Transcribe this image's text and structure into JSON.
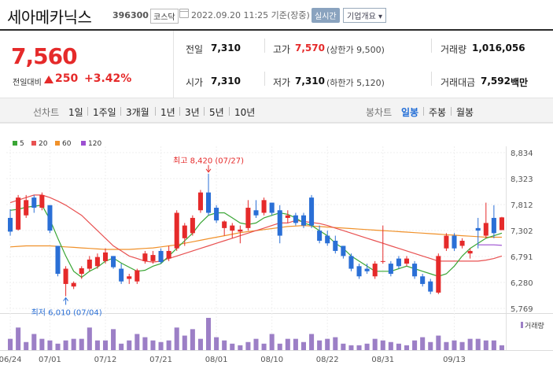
{
  "header": {
    "stock_name": "세아메카닉스",
    "stock_code": "396300",
    "market": "코스닥",
    "datetime": "2022.09.20 11:25 기준(장중)",
    "realtime_label": "실시간",
    "company_label": "기업개요 ▾"
  },
  "quote": {
    "price": "7,560",
    "change_label": "전일대비",
    "change": "250",
    "change_pct": "+3.42%",
    "prev_close_label": "전일",
    "prev_close": "7,310",
    "open_label": "시가",
    "open": "7,310",
    "high_label": "고가",
    "high": "7,570",
    "upper_limit": "(상한가 9,500)",
    "low_label": "저가",
    "low": "7,310",
    "lower_limit": "(하한가 5,120)",
    "volume_label": "거래량",
    "volume": "1,016,056",
    "amount_label": "거래대금",
    "amount": "7,592",
    "amount_unit": "백만"
  },
  "period_bar": {
    "line_chart_label": "선차트",
    "line_periods": [
      "1일",
      "1주일",
      "3개월",
      "1년",
      "3년",
      "5년",
      "10년"
    ],
    "candle_chart_label": "봉차트",
    "candle_periods": [
      "일봉",
      "주봉",
      "월봉"
    ],
    "active_candle_period": "일봉"
  },
  "colors": {
    "up": "#e52a2a",
    "down": "#2a6fd6",
    "ma5": "#3aa635",
    "ma20": "#e85151",
    "ma60": "#f0912a",
    "ma120": "#9c4fd1",
    "volume": "#9c7fc6"
  },
  "chart_data": {
    "type": "candlestick",
    "legend": [
      "5",
      "20",
      "60",
      "120"
    ],
    "y_ticks": [
      "8,834",
      "8,323",
      "7,812",
      "7,302",
      "6,791",
      "6,280",
      "5,769"
    ],
    "ylim": [
      5769,
      8834
    ],
    "x_tick_labels": [
      "06/24",
      "07/01",
      "07/12",
      "07/21",
      "08/01",
      "08/10",
      "08/22",
      "08/31",
      "09/13"
    ],
    "x_tick_index": [
      0,
      5,
      12,
      19,
      26,
      33,
      40,
      47,
      56
    ],
    "annotations": {
      "high": "최고 8,420 (07/27)",
      "low": "최저 6,010 (07/04)"
    },
    "volume_label": "거래량",
    "candles": [
      {
        "o": 7550,
        "h": 7720,
        "l": 7200,
        "c": 7280
      },
      {
        "o": 7320,
        "h": 8000,
        "l": 7300,
        "c": 7950
      },
      {
        "o": 7600,
        "h": 8000,
        "l": 7550,
        "c": 7900
      },
      {
        "o": 7950,
        "h": 8000,
        "l": 7650,
        "c": 7750
      },
      {
        "o": 7750,
        "h": 8050,
        "l": 7700,
        "c": 8000
      },
      {
        "o": 7800,
        "h": 7800,
        "l": 7250,
        "c": 7300
      },
      {
        "o": 7000,
        "h": 7000,
        "l": 6400,
        "c": 6450
      },
      {
        "o": 6250,
        "h": 6600,
        "l": 6010,
        "c": 6550
      },
      {
        "o": 6200,
        "h": 6300,
        "l": 6150,
        "c": 6270
      },
      {
        "o": 6450,
        "h": 6600,
        "l": 6350,
        "c": 6560
      },
      {
        "o": 6550,
        "h": 6800,
        "l": 6500,
        "c": 6730
      },
      {
        "o": 6600,
        "h": 6850,
        "l": 6550,
        "c": 6780
      },
      {
        "o": 6700,
        "h": 6950,
        "l": 6650,
        "c": 6870
      },
      {
        "o": 6800,
        "h": 6800,
        "l": 6550,
        "c": 6580
      },
      {
        "o": 6550,
        "h": 6650,
        "l": 6250,
        "c": 6300
      },
      {
        "o": 6350,
        "h": 6450,
        "l": 6250,
        "c": 6400
      },
      {
        "o": 6300,
        "h": 6550,
        "l": 6250,
        "c": 6520
      },
      {
        "o": 6700,
        "h": 6900,
        "l": 6650,
        "c": 6850
      },
      {
        "o": 6700,
        "h": 6900,
        "l": 6650,
        "c": 6820
      },
      {
        "o": 6900,
        "h": 6950,
        "l": 6650,
        "c": 6680
      },
      {
        "o": 6750,
        "h": 7000,
        "l": 6700,
        "c": 6900
      },
      {
        "o": 6950,
        "h": 7700,
        "l": 6900,
        "c": 7650
      },
      {
        "o": 7150,
        "h": 7450,
        "l": 7000,
        "c": 7400
      },
      {
        "o": 7250,
        "h": 7600,
        "l": 7200,
        "c": 7550
      },
      {
        "o": 7700,
        "h": 8100,
        "l": 7650,
        "c": 8050
      },
      {
        "o": 8050,
        "h": 8420,
        "l": 7600,
        "c": 7650
      },
      {
        "o": 7750,
        "h": 7800,
        "l": 7450,
        "c": 7500
      },
      {
        "o": 7350,
        "h": 7500,
        "l": 7200,
        "c": 7480
      },
      {
        "o": 7300,
        "h": 7450,
        "l": 7150,
        "c": 7400
      },
      {
        "o": 7280,
        "h": 7400,
        "l": 7050,
        "c": 7320
      },
      {
        "o": 7350,
        "h": 7900,
        "l": 7300,
        "c": 7750
      },
      {
        "o": 7700,
        "h": 7900,
        "l": 7550,
        "c": 7600
      },
      {
        "o": 7650,
        "h": 7950,
        "l": 7600,
        "c": 7900
      },
      {
        "o": 7850,
        "h": 7850,
        "l": 7600,
        "c": 7650
      },
      {
        "o": 7700,
        "h": 7800,
        "l": 7050,
        "c": 7200
      },
      {
        "o": 7550,
        "h": 7700,
        "l": 7450,
        "c": 7600
      },
      {
        "o": 7600,
        "h": 7650,
        "l": 7400,
        "c": 7450
      },
      {
        "o": 7600,
        "h": 7650,
        "l": 7350,
        "c": 7400
      },
      {
        "o": 7950,
        "h": 8000,
        "l": 7350,
        "c": 7400
      },
      {
        "o": 7300,
        "h": 7400,
        "l": 7050,
        "c": 7100
      },
      {
        "o": 7200,
        "h": 7300,
        "l": 7000,
        "c": 7050
      },
      {
        "o": 7100,
        "h": 7200,
        "l": 6850,
        "c": 6900
      },
      {
        "o": 7000,
        "h": 7000,
        "l": 6750,
        "c": 6800
      },
      {
        "o": 6800,
        "h": 6850,
        "l": 6500,
        "c": 6550
      },
      {
        "o": 6600,
        "h": 6650,
        "l": 6350,
        "c": 6400
      },
      {
        "o": 6550,
        "h": 6650,
        "l": 6450,
        "c": 6500
      },
      {
        "o": 6400,
        "h": 6700,
        "l": 6350,
        "c": 6650
      },
      {
        "o": 6700,
        "h": 7400,
        "l": 6650,
        "c": 6700
      },
      {
        "o": 6650,
        "h": 6700,
        "l": 6400,
        "c": 6450
      },
      {
        "o": 6750,
        "h": 6800,
        "l": 6550,
        "c": 6600
      },
      {
        "o": 6650,
        "h": 6800,
        "l": 6600,
        "c": 6750
      },
      {
        "o": 6650,
        "h": 6700,
        "l": 6350,
        "c": 6400
      },
      {
        "o": 6400,
        "h": 6450,
        "l": 6200,
        "c": 6250
      },
      {
        "o": 6300,
        "h": 6350,
        "l": 6050,
        "c": 6100
      },
      {
        "o": 6080,
        "h": 6850,
        "l": 6050,
        "c": 6800
      },
      {
        "o": 6950,
        "h": 7250,
        "l": 6900,
        "c": 7200
      },
      {
        "o": 7200,
        "h": 7250,
        "l": 6900,
        "c": 6950
      },
      {
        "o": 7000,
        "h": 7150,
        "l": 6950,
        "c": 7100
      },
      {
        "o": 6850,
        "h": 6950,
        "l": 6750,
        "c": 6900
      },
      {
        "o": 7350,
        "h": 7550,
        "l": 6950,
        "c": 7300
      },
      {
        "o": 7200,
        "h": 7850,
        "l": 7150,
        "c": 7450
      },
      {
        "o": 7550,
        "h": 7800,
        "l": 7150,
        "c": 7250
      },
      {
        "o": 7310,
        "h": 7570,
        "l": 7310,
        "c": 7560
      }
    ],
    "volumes": [
      14,
      28,
      10,
      20,
      14,
      12,
      8,
      12,
      14,
      14,
      28,
      12,
      12,
      26,
      8,
      12,
      20,
      16,
      12,
      10,
      12,
      28,
      18,
      26,
      14,
      40,
      16,
      12,
      8,
      6,
      10,
      14,
      8,
      20,
      8,
      14,
      14,
      10,
      20,
      12,
      14,
      16,
      8,
      6,
      6,
      8,
      14,
      12,
      10,
      8,
      6,
      12,
      16,
      10,
      18,
      10,
      12,
      10,
      14,
      14,
      12,
      12,
      6
    ],
    "ma5": [
      7700,
      7720,
      7760,
      7780,
      7800,
      7520,
      7150,
      6800,
      6500,
      6380,
      6500,
      6580,
      6700,
      6760,
      6660,
      6580,
      6500,
      6520,
      6600,
      6650,
      6800,
      6950,
      7100,
      7250,
      7450,
      7600,
      7650,
      7650,
      7550,
      7450,
      7420,
      7450,
      7550,
      7600,
      7650,
      7620,
      7550,
      7450,
      7400,
      7300,
      7200,
      7050,
      6950,
      6800,
      6700,
      6600,
      6500,
      6500,
      6500,
      6550,
      6600,
      6550,
      6500,
      6450,
      6400,
      6450,
      6600,
      6800,
      6950,
      7050,
      7150,
      7200,
      7250
    ],
    "ma20": [
      7850,
      7900,
      7950,
      8000,
      8000,
      7950,
      7880,
      7800,
      7700,
      7600,
      7450,
      7300,
      7150,
      7000,
      6900,
      6800,
      6750,
      6700,
      6680,
      6700,
      6750,
      6800,
      6850,
      6900,
      6950,
      7000,
      7050,
      7100,
      7150,
      7200,
      7250,
      7300,
      7350,
      7400,
      7450,
      7450,
      7500,
      7480,
      7460,
      7440,
      7400,
      7350,
      7300,
      7250,
      7200,
      7150,
      7100,
      7050,
      7000,
      6950,
      6900,
      6850,
      6800,
      6750,
      6700,
      6700,
      6700,
      6700,
      6700,
      6700,
      6720,
      6750,
      6800
    ],
    "ma60": [
      6980,
      6990,
      7000,
      7000,
      7000,
      7000,
      6990,
      6980,
      6970,
      6960,
      6950,
      6940,
      6930,
      6930,
      6930,
      6930,
      6940,
      6950,
      6960,
      6980,
      7000,
      7020,
      7050,
      7080,
      7110,
      7140,
      7170,
      7200,
      7230,
      7260,
      7280,
      7300,
      7320,
      7340,
      7360,
      7380,
      7390,
      7400,
      7390,
      7380,
      7370,
      7360,
      7350,
      7340,
      7330,
      7320,
      7310,
      7300,
      7290,
      7280,
      7270,
      7260,
      7250,
      7240,
      7230,
      7220,
      7210,
      7200,
      7190,
      7180,
      7170,
      7170,
      7170
    ],
    "ma120": [
      7020,
      7020,
      7020,
      7010
    ]
  }
}
